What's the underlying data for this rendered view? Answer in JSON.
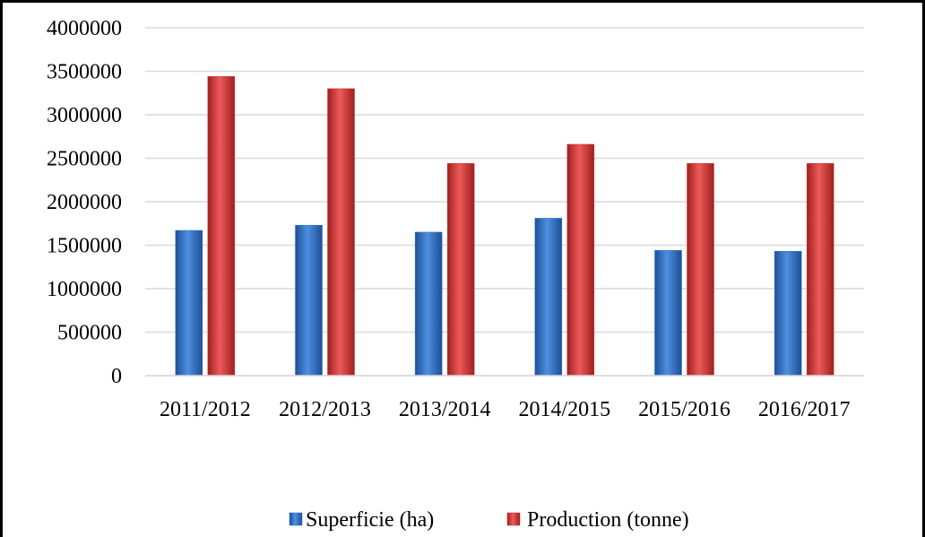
{
  "chart_data": {
    "type": "bar",
    "categories": [
      "2011/2012",
      "2012/2013",
      "2013/2014",
      "2014/2015",
      "2015/2016",
      "2016/2017"
    ],
    "series": [
      {
        "name": "Superficie (ha)",
        "color": "#2f6fc7",
        "values": [
          1670000,
          1730000,
          1650000,
          1810000,
          1440000,
          1430000
        ]
      },
      {
        "name": "Production (tonne)",
        "color": "#d63333",
        "values": [
          3440000,
          3300000,
          2440000,
          2660000,
          2440000,
          2440000
        ]
      }
    ],
    "ylim": [
      0,
      4000000
    ],
    "yticks": [
      0,
      500000,
      1000000,
      1500000,
      2000000,
      2500000,
      3000000,
      3500000,
      4000000
    ],
    "grid": true,
    "legend_position": "bottom"
  }
}
